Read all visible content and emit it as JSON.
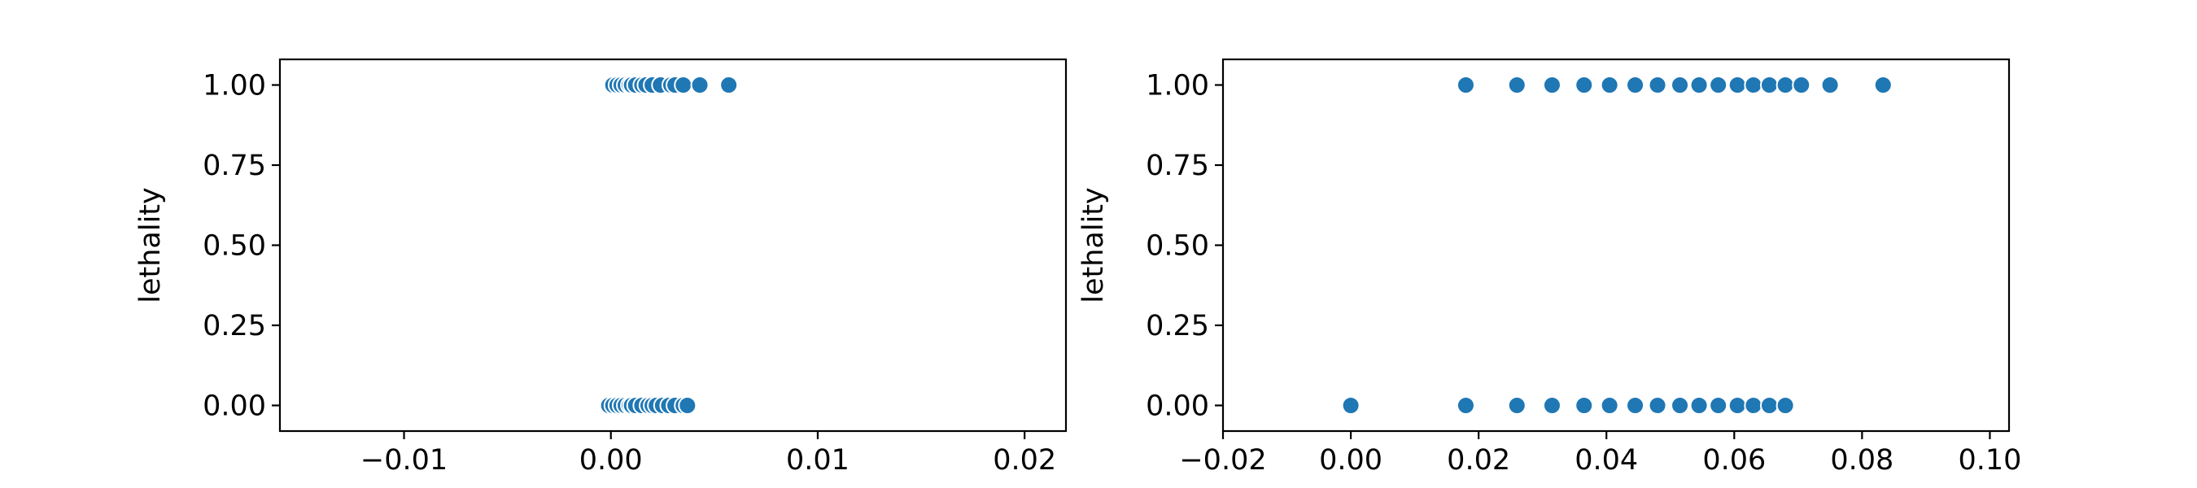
{
  "chart_data": [
    {
      "type": "scatter",
      "xlabel": "",
      "ylabel": "lethality",
      "xlim": [
        -0.016,
        0.022
      ],
      "ylim": [
        -0.08,
        1.08
      ],
      "xticks": [
        -0.01,
        0.0,
        0.01,
        0.02
      ],
      "xtick_labels": [
        "−0.01",
        "0.00",
        "0.01",
        "0.02"
      ],
      "yticks": [
        0.0,
        0.25,
        0.5,
        0.75,
        1.0
      ],
      "ytick_labels": [
        "0.00",
        "0.25",
        "0.50",
        "0.75",
        "1.00"
      ],
      "grid": false,
      "color": "#1f77b4",
      "points": [
        {
          "x": 0.0001,
          "y": 1
        },
        {
          "x": 0.0003,
          "y": 1
        },
        {
          "x": 0.0005,
          "y": 1
        },
        {
          "x": 0.0007,
          "y": 1
        },
        {
          "x": 0.0009,
          "y": 1
        },
        {
          "x": 0.001,
          "y": 1
        },
        {
          "x": 0.0012,
          "y": 1
        },
        {
          "x": 0.0015,
          "y": 1
        },
        {
          "x": 0.0017,
          "y": 1
        },
        {
          "x": 0.002,
          "y": 1
        },
        {
          "x": 0.0024,
          "y": 1
        },
        {
          "x": 0.0029,
          "y": 1
        },
        {
          "x": 0.0031,
          "y": 1
        },
        {
          "x": 0.0035,
          "y": 1
        },
        {
          "x": 0.0043,
          "y": 1
        },
        {
          "x": 0.0057,
          "y": 1
        },
        {
          "x": -0.0001,
          "y": 0
        },
        {
          "x": 0.0001,
          "y": 0
        },
        {
          "x": 0.0003,
          "y": 0
        },
        {
          "x": 0.0005,
          "y": 0
        },
        {
          "x": 0.0007,
          "y": 0
        },
        {
          "x": 0.0009,
          "y": 0
        },
        {
          "x": 0.001,
          "y": 0
        },
        {
          "x": 0.0012,
          "y": 0
        },
        {
          "x": 0.0015,
          "y": 0
        },
        {
          "x": 0.0018,
          "y": 0
        },
        {
          "x": 0.002,
          "y": 0
        },
        {
          "x": 0.0022,
          "y": 0
        },
        {
          "x": 0.0025,
          "y": 0
        },
        {
          "x": 0.0028,
          "y": 0
        },
        {
          "x": 0.0031,
          "y": 0
        },
        {
          "x": 0.0035,
          "y": 0
        },
        {
          "x": 0.0037,
          "y": 0
        }
      ]
    },
    {
      "type": "scatter",
      "xlabel": "",
      "ylabel": "lethality",
      "xlim": [
        -0.02,
        0.103
      ],
      "ylim": [
        -0.08,
        1.08
      ],
      "xticks": [
        -0.02,
        0.0,
        0.02,
        0.04,
        0.06,
        0.08,
        0.1
      ],
      "xtick_labels": [
        "−0.02",
        "0.00",
        "0.02",
        "0.04",
        "0.06",
        "0.08",
        "0.10"
      ],
      "yticks": [
        0.0,
        0.25,
        0.5,
        0.75,
        1.0
      ],
      "ytick_labels": [
        "0.00",
        "0.25",
        "0.50",
        "0.75",
        "1.00"
      ],
      "grid": false,
      "color": "#1f77b4",
      "points": [
        {
          "x": 0.018,
          "y": 1
        },
        {
          "x": 0.026,
          "y": 1
        },
        {
          "x": 0.0315,
          "y": 1
        },
        {
          "x": 0.0365,
          "y": 1
        },
        {
          "x": 0.0405,
          "y": 1
        },
        {
          "x": 0.0445,
          "y": 1
        },
        {
          "x": 0.048,
          "y": 1
        },
        {
          "x": 0.0515,
          "y": 1
        },
        {
          "x": 0.0545,
          "y": 1
        },
        {
          "x": 0.0575,
          "y": 1
        },
        {
          "x": 0.0605,
          "y": 1
        },
        {
          "x": 0.063,
          "y": 1
        },
        {
          "x": 0.0655,
          "y": 1
        },
        {
          "x": 0.068,
          "y": 1
        },
        {
          "x": 0.0705,
          "y": 1
        },
        {
          "x": 0.075,
          "y": 1
        },
        {
          "x": 0.0833,
          "y": 1
        },
        {
          "x": 0.0,
          "y": 0
        },
        {
          "x": 0.018,
          "y": 0
        },
        {
          "x": 0.026,
          "y": 0
        },
        {
          "x": 0.0315,
          "y": 0
        },
        {
          "x": 0.0365,
          "y": 0
        },
        {
          "x": 0.0405,
          "y": 0
        },
        {
          "x": 0.0445,
          "y": 0
        },
        {
          "x": 0.048,
          "y": 0
        },
        {
          "x": 0.0515,
          "y": 0
        },
        {
          "x": 0.0545,
          "y": 0
        },
        {
          "x": 0.0575,
          "y": 0
        },
        {
          "x": 0.0605,
          "y": 0
        },
        {
          "x": 0.063,
          "y": 0
        },
        {
          "x": 0.0655,
          "y": 0
        },
        {
          "x": 0.068,
          "y": 0
        }
      ]
    }
  ]
}
